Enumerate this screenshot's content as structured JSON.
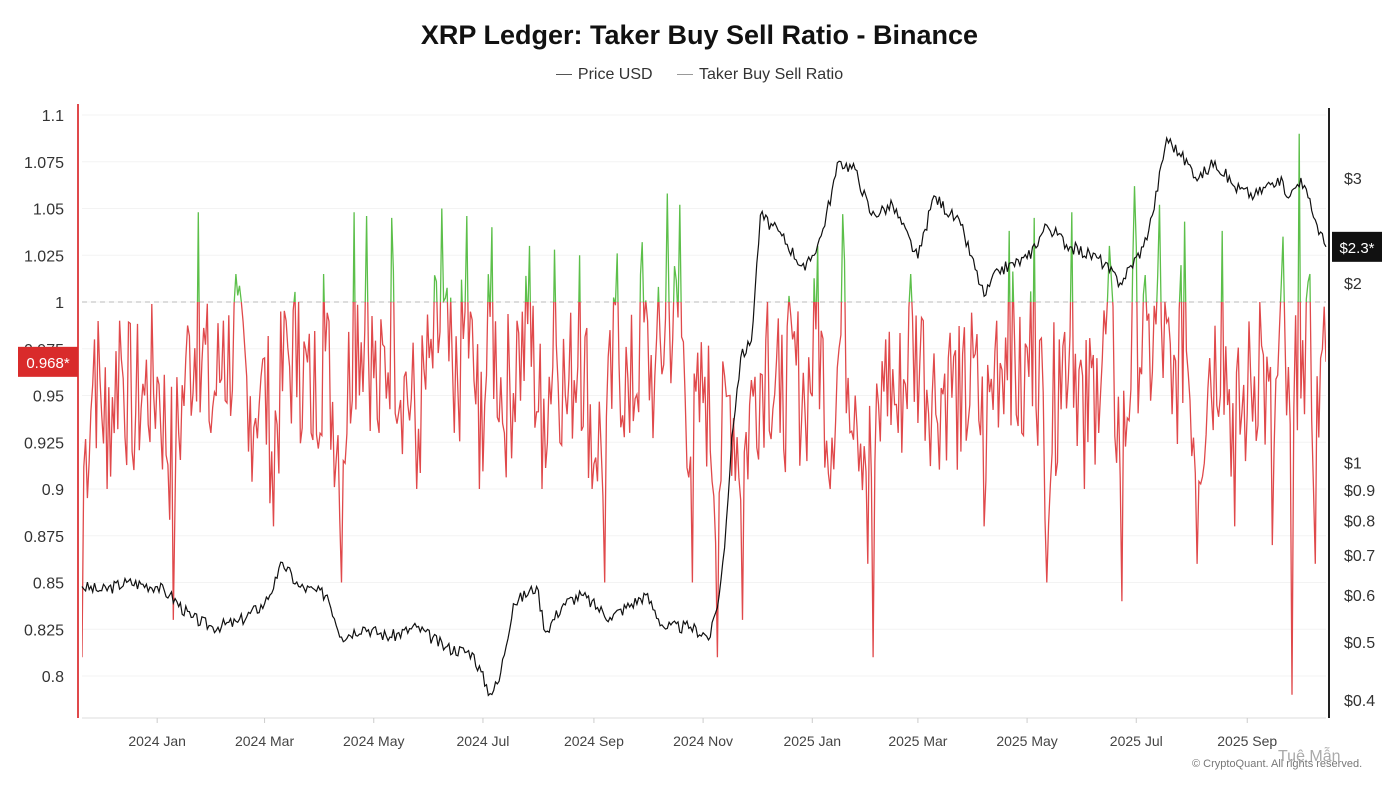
{
  "chart_data": {
    "type": "line",
    "title": "XRP Ledger: Taker Buy Sell Ratio - Binance",
    "legend": [
      "Price USD",
      "Taker Buy Sell Ratio"
    ],
    "legend_position": "top-center",
    "x_ticks": [
      "2024 Jan",
      "2024 Mar",
      "2024 May",
      "2024 Jul",
      "2024 Sep",
      "2024 Nov",
      "2025 Jan",
      "2025 Mar",
      "2025 May",
      "2025 Jul",
      "2025 Sep"
    ],
    "x_range": [
      "2023-11-20",
      "2025-10-15"
    ],
    "left_axis": {
      "label": "Taker Buy Sell Ratio",
      "ticks": [
        "1.1",
        "1.075",
        "1.05",
        "1.025",
        "1",
        "0.975",
        "0.95",
        "0.925",
        "0.9",
        "0.875",
        "0.85",
        "0.825",
        "0.8"
      ],
      "range": [
        0.785,
        1.11
      ],
      "reference_line": 1.0,
      "current_value_label": "0.968*"
    },
    "right_axis": {
      "scale": "log",
      "ticks": [
        "$3",
        "$2",
        "$1",
        "$0.9",
        "$0.8",
        "$0.7",
        "$0.6",
        "$0.5",
        "$0.4"
      ],
      "tick_values": [
        3,
        2,
        1,
        0.9,
        0.8,
        0.7,
        0.6,
        0.5,
        0.4
      ],
      "current_value_label": "$2.3*"
    },
    "colors": {
      "ratio_above_1": "#5cbf4a",
      "ratio_below_1": "#e0494b",
      "price": "#111111",
      "current_ratio_badge": "#d92b2b",
      "current_price_badge": "#111111"
    },
    "series": [
      {
        "name": "Price USD",
        "axis": "right",
        "points": [
          [
            "2023-11-20",
            0.62
          ],
          [
            "2023-12-01",
            0.61
          ],
          [
            "2023-12-15",
            0.63
          ],
          [
            "2024-01-01",
            0.62
          ],
          [
            "2024-01-08",
            0.6
          ],
          [
            "2024-01-20",
            0.55
          ],
          [
            "2024-02-01",
            0.53
          ],
          [
            "2024-02-15",
            0.54
          ],
          [
            "2024-03-01",
            0.58
          ],
          [
            "2024-03-08",
            0.64
          ],
          [
            "2024-03-11",
            0.68
          ],
          [
            "2024-03-20",
            0.62
          ],
          [
            "2024-04-05",
            0.6
          ],
          [
            "2024-04-13",
            0.51
          ],
          [
            "2024-04-25",
            0.53
          ],
          [
            "2024-05-10",
            0.51
          ],
          [
            "2024-05-25",
            0.53
          ],
          [
            "2024-06-10",
            0.49
          ],
          [
            "2024-06-25",
            0.48
          ],
          [
            "2024-07-05",
            0.41
          ],
          [
            "2024-07-10",
            0.43
          ],
          [
            "2024-07-18",
            0.58
          ],
          [
            "2024-07-31",
            0.62
          ],
          [
            "2024-08-05",
            0.52
          ],
          [
            "2024-08-15",
            0.58
          ],
          [
            "2024-08-25",
            0.6
          ],
          [
            "2024-09-10",
            0.55
          ],
          [
            "2024-09-30",
            0.6
          ],
          [
            "2024-10-10",
            0.53
          ],
          [
            "2024-10-25",
            0.53
          ],
          [
            "2024-11-05",
            0.51
          ],
          [
            "2024-11-10",
            0.6
          ],
          [
            "2024-11-13",
            0.72
          ],
          [
            "2024-11-17",
            1.1
          ],
          [
            "2024-11-22",
            1.5
          ],
          [
            "2024-11-28",
            1.6
          ],
          [
            "2024-12-03",
            2.6
          ],
          [
            "2024-12-15",
            2.4
          ],
          [
            "2024-12-28",
            2.1
          ],
          [
            "2025-01-06",
            2.4
          ],
          [
            "2025-01-16",
            3.2
          ],
          [
            "2025-01-25",
            3.1
          ],
          [
            "2025-02-03",
            2.6
          ],
          [
            "2025-02-15",
            2.7
          ],
          [
            "2025-03-01",
            2.2
          ],
          [
            "2025-03-10",
            2.8
          ],
          [
            "2025-03-25",
            2.5
          ],
          [
            "2025-04-07",
            1.9
          ],
          [
            "2025-04-15",
            2.1
          ],
          [
            "2025-05-01",
            2.2
          ],
          [
            "2025-05-12",
            2.5
          ],
          [
            "2025-05-25",
            2.3
          ],
          [
            "2025-06-10",
            2.2
          ],
          [
            "2025-06-22",
            2.0
          ],
          [
            "2025-07-05",
            2.3
          ],
          [
            "2025-07-10",
            2.6
          ],
          [
            "2025-07-18",
            3.5
          ],
          [
            "2025-07-25",
            3.3
          ],
          [
            "2025-08-05",
            3.0
          ],
          [
            "2025-08-14",
            3.2
          ],
          [
            "2025-08-25",
            2.9
          ],
          [
            "2025-09-05",
            2.8
          ],
          [
            "2025-09-18",
            3.0
          ],
          [
            "2025-09-25",
            2.8
          ],
          [
            "2025-10-01",
            3.0
          ],
          [
            "2025-10-10",
            2.5
          ],
          [
            "2025-10-15",
            2.3
          ]
        ]
      },
      {
        "name": "Taker Buy Sell Ratio",
        "axis": "left",
        "points": [
          [
            "2023-11-20",
            0.81
          ],
          [
            "2023-11-27",
            0.98
          ],
          [
            "2023-12-04",
            0.9
          ],
          [
            "2023-12-11",
            0.99
          ],
          [
            "2023-12-18",
            0.92
          ],
          [
            "2023-12-25",
            0.95
          ],
          [
            "2024-01-01",
            0.96
          ],
          [
            "2024-01-10",
            0.83
          ],
          [
            "2024-01-17",
            0.97
          ],
          [
            "2024-01-24",
            1.048
          ],
          [
            "2024-01-31",
            0.93
          ],
          [
            "2024-02-07",
            0.99
          ],
          [
            "2024-02-14",
            1.015
          ],
          [
            "2024-02-21",
            0.92
          ],
          [
            "2024-02-28",
            0.96
          ],
          [
            "2024-03-06",
            0.88
          ],
          [
            "2024-03-13",
            0.99
          ],
          [
            "2024-03-20",
            1.0
          ],
          [
            "2024-03-27",
            0.93
          ],
          [
            "2024-04-03",
            1.015
          ],
          [
            "2024-04-13",
            0.85
          ],
          [
            "2024-04-20",
            1.048
          ],
          [
            "2024-04-27",
            1.046
          ],
          [
            "2024-05-04",
            0.93
          ],
          [
            "2024-05-11",
            1.045
          ],
          [
            "2024-05-18",
            0.96
          ],
          [
            "2024-05-25",
            0.9
          ],
          [
            "2024-06-01",
            0.97
          ],
          [
            "2024-06-08",
            1.05
          ],
          [
            "2024-06-15",
            0.93
          ],
          [
            "2024-06-22",
            1.046
          ],
          [
            "2024-06-29",
            0.9
          ],
          [
            "2024-07-06",
            1.04
          ],
          [
            "2024-07-13",
            0.93
          ],
          [
            "2024-07-20",
            0.99
          ],
          [
            "2024-07-27",
            1.03
          ],
          [
            "2024-08-03",
            0.9
          ],
          [
            "2024-08-10",
            1.028
          ],
          [
            "2024-08-17",
            0.94
          ],
          [
            "2024-08-24",
            1.025
          ],
          [
            "2024-08-31",
            0.9
          ],
          [
            "2024-09-07",
            0.85
          ],
          [
            "2024-09-14",
            1.026
          ],
          [
            "2024-09-21",
            0.93
          ],
          [
            "2024-09-28",
            1.032
          ],
          [
            "2024-10-05",
            0.96
          ],
          [
            "2024-10-12",
            1.058
          ],
          [
            "2024-10-19",
            1.052
          ],
          [
            "2024-10-26",
            0.85
          ],
          [
            "2024-11-02",
            0.96
          ],
          [
            "2024-11-09",
            0.81
          ],
          [
            "2024-11-16",
            0.95
          ],
          [
            "2024-11-23",
            0.83
          ],
          [
            "2024-11-30",
            0.96
          ],
          [
            "2024-12-07",
            1.0
          ],
          [
            "2024-12-14",
            0.93
          ],
          [
            "2024-12-21",
            0.98
          ],
          [
            "2024-12-28",
            0.94
          ],
          [
            "2025-01-04",
            1.03
          ],
          [
            "2025-01-11",
            0.9
          ],
          [
            "2025-01-18",
            1.047
          ],
          [
            "2025-01-25",
            0.95
          ],
          [
            "2025-02-01",
            0.86
          ],
          [
            "2025-02-04",
            0.81
          ],
          [
            "2025-02-11",
            0.98
          ],
          [
            "2025-02-18",
            0.93
          ],
          [
            "2025-02-25",
            1.015
          ],
          [
            "2025-03-04",
            0.99
          ],
          [
            "2025-03-11",
            0.94
          ],
          [
            "2025-03-18",
            0.97
          ],
          [
            "2025-03-25",
            0.92
          ],
          [
            "2025-04-01",
            0.97
          ],
          [
            "2025-04-07",
            0.88
          ],
          [
            "2025-04-14",
            0.99
          ],
          [
            "2025-04-21",
            1.038
          ],
          [
            "2025-04-28",
            0.93
          ],
          [
            "2025-05-05",
            1.045
          ],
          [
            "2025-05-12",
            0.85
          ],
          [
            "2025-05-19",
            0.98
          ],
          [
            "2025-05-26",
            1.048
          ],
          [
            "2025-06-02",
            0.9
          ],
          [
            "2025-06-09",
            0.97
          ],
          [
            "2025-06-16",
            1.03
          ],
          [
            "2025-06-23",
            0.84
          ],
          [
            "2025-06-30",
            1.062
          ],
          [
            "2025-07-07",
            0.99
          ],
          [
            "2025-07-14",
            1.052
          ],
          [
            "2025-07-21",
            0.94
          ],
          [
            "2025-07-28",
            1.043
          ],
          [
            "2025-08-04",
            0.86
          ],
          [
            "2025-08-11",
            0.97
          ],
          [
            "2025-08-18",
            1.038
          ],
          [
            "2025-08-25",
            0.88
          ],
          [
            "2025-09-01",
            0.94
          ],
          [
            "2025-09-08",
            1.0
          ],
          [
            "2025-09-15",
            0.87
          ],
          [
            "2025-09-21",
            1.035
          ],
          [
            "2025-09-26",
            0.79
          ],
          [
            "2025-09-30",
            1.09
          ],
          [
            "2025-10-03",
            0.94
          ],
          [
            "2025-10-06",
            1.015
          ],
          [
            "2025-10-09",
            0.86
          ],
          [
            "2025-10-12",
            0.97
          ],
          [
            "2025-10-15",
            0.968
          ]
        ]
      }
    ]
  },
  "credit": "© CryptoQuant. All rights reserved.",
  "watermark": "Tuệ Mẫn"
}
